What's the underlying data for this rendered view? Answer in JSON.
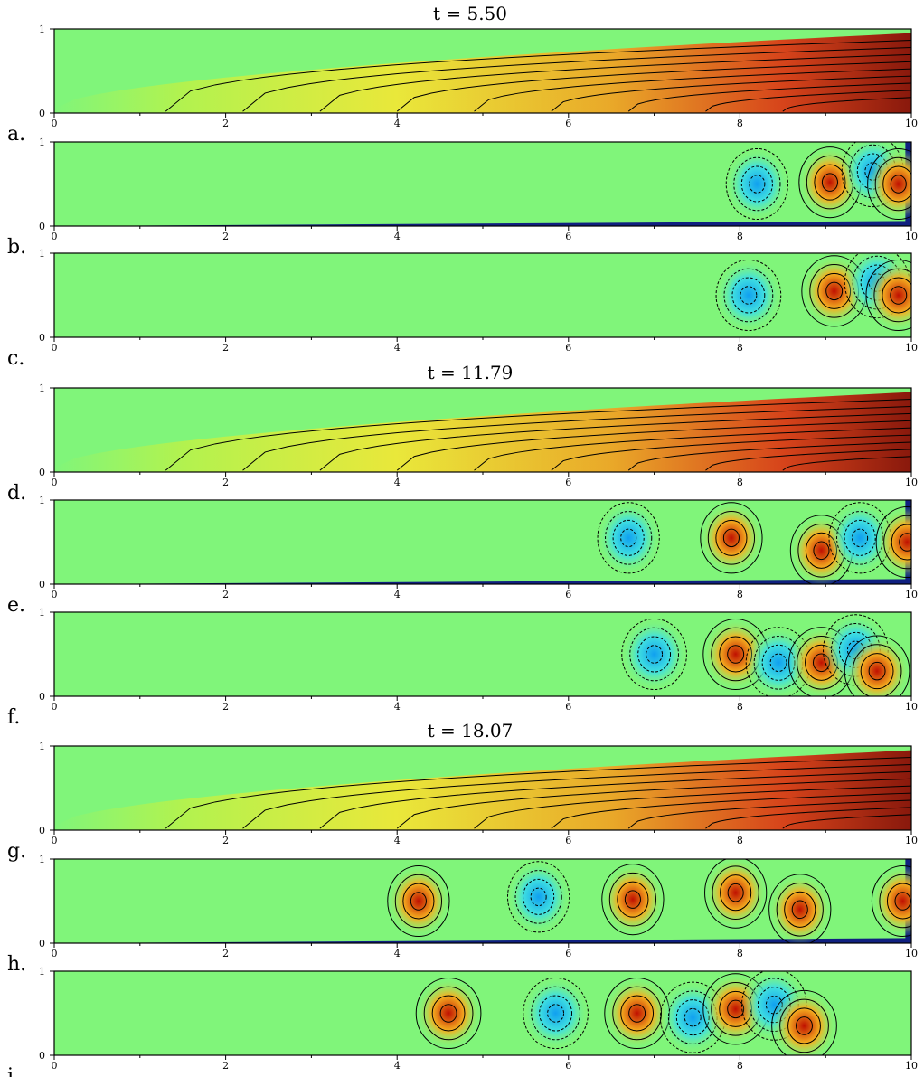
{
  "figure": {
    "time_titles": [
      "t = 5.50",
      "t = 11.79",
      "t = 18.07"
    ]
  },
  "chart_data": [
    {
      "type": "heatmap",
      "panel": "a.",
      "time": "t = 5.50",
      "field": "temperature",
      "x_range": [
        0,
        10
      ],
      "y_range": [
        0,
        1
      ],
      "x_ticks": [
        "0",
        "2",
        "4",
        "6",
        "8",
        "10"
      ],
      "y_ticks": [
        "0",
        "1"
      ]
    },
    {
      "type": "heatmap",
      "panel": "b.",
      "time": "t = 5.50",
      "field": "vorticity",
      "x_range": [
        0,
        10
      ],
      "y_range": [
        0,
        1
      ],
      "x_ticks": [
        "0",
        "2",
        "4",
        "6",
        "8",
        "10"
      ],
      "y_ticks": [
        "0",
        "1"
      ],
      "cells": [
        {
          "x": 8.2,
          "y": 0.5,
          "sign": -1
        },
        {
          "x": 9.05,
          "y": 0.52,
          "sign": 1
        },
        {
          "x": 9.55,
          "y": 0.65,
          "sign": -1
        },
        {
          "x": 9.85,
          "y": 0.5,
          "sign": 1
        }
      ]
    },
    {
      "type": "heatmap",
      "panel": "c.",
      "time": "t = 5.50",
      "field": "streamfunction",
      "x_range": [
        0,
        10
      ],
      "y_range": [
        0,
        1
      ],
      "x_ticks": [
        "0",
        "2",
        "4",
        "6",
        "8",
        "10"
      ],
      "y_ticks": [
        "0",
        "1"
      ],
      "cells": [
        {
          "x": 8.1,
          "y": 0.5,
          "sign": -1
        },
        {
          "x": 9.1,
          "y": 0.55,
          "sign": 1
        },
        {
          "x": 9.6,
          "y": 0.65,
          "sign": -1
        },
        {
          "x": 9.85,
          "y": 0.5,
          "sign": 1
        }
      ]
    },
    {
      "type": "heatmap",
      "panel": "d.",
      "time": "t = 11.79",
      "field": "temperature",
      "x_range": [
        0,
        10
      ],
      "y_range": [
        0,
        1
      ],
      "x_ticks": [
        "0",
        "2",
        "4",
        "6",
        "8",
        "10"
      ],
      "y_ticks": [
        "0",
        "1"
      ]
    },
    {
      "type": "heatmap",
      "panel": "e.",
      "time": "t = 11.79",
      "field": "vorticity",
      "x_range": [
        0,
        10
      ],
      "y_range": [
        0,
        1
      ],
      "x_ticks": [
        "0",
        "2",
        "4",
        "6",
        "8",
        "10"
      ],
      "y_ticks": [
        "0",
        "1"
      ],
      "cells": [
        {
          "x": 6.7,
          "y": 0.55,
          "sign": -1
        },
        {
          "x": 7.9,
          "y": 0.55,
          "sign": 1
        },
        {
          "x": 8.95,
          "y": 0.4,
          "sign": 1
        },
        {
          "x": 9.4,
          "y": 0.55,
          "sign": -1
        },
        {
          "x": 9.95,
          "y": 0.5,
          "sign": 1
        }
      ]
    },
    {
      "type": "heatmap",
      "panel": "f.",
      "time": "t = 11.79",
      "field": "streamfunction",
      "x_range": [
        0,
        10
      ],
      "y_range": [
        0,
        1
      ],
      "x_ticks": [
        "0",
        "2",
        "4",
        "6",
        "8",
        "10"
      ],
      "y_ticks": [
        "0",
        "1"
      ],
      "cells": [
        {
          "x": 7.0,
          "y": 0.5,
          "sign": -1
        },
        {
          "x": 7.95,
          "y": 0.5,
          "sign": 1
        },
        {
          "x": 8.45,
          "y": 0.4,
          "sign": -1
        },
        {
          "x": 8.95,
          "y": 0.4,
          "sign": 1
        },
        {
          "x": 9.35,
          "y": 0.55,
          "sign": -1
        },
        {
          "x": 9.6,
          "y": 0.3,
          "sign": 1
        }
      ]
    },
    {
      "type": "heatmap",
      "panel": "g.",
      "time": "t = 18.07",
      "field": "temperature",
      "x_range": [
        0,
        10
      ],
      "y_range": [
        0,
        1
      ],
      "x_ticks": [
        "0",
        "2",
        "4",
        "6",
        "8",
        "10"
      ],
      "y_ticks": [
        "0",
        "1"
      ]
    },
    {
      "type": "heatmap",
      "panel": "h.",
      "time": "t = 18.07",
      "field": "vorticity",
      "x_range": [
        0,
        10
      ],
      "y_range": [
        0,
        1
      ],
      "x_ticks": [
        "0",
        "2",
        "4",
        "6",
        "8",
        "10"
      ],
      "y_ticks": [
        "0",
        "1"
      ],
      "cells": [
        {
          "x": 4.25,
          "y": 0.5,
          "sign": 1
        },
        {
          "x": 5.65,
          "y": 0.55,
          "sign": -1
        },
        {
          "x": 6.75,
          "y": 0.52,
          "sign": 1
        },
        {
          "x": 7.95,
          "y": 0.6,
          "sign": 1
        },
        {
          "x": 8.7,
          "y": 0.4,
          "sign": 1
        },
        {
          "x": 9.9,
          "y": 0.5,
          "sign": 1
        }
      ]
    },
    {
      "type": "heatmap",
      "panel": "i.",
      "time": "t = 18.07",
      "field": "streamfunction",
      "x_range": [
        0,
        10
      ],
      "y_range": [
        0,
        1
      ],
      "x_ticks": [
        "0",
        "2",
        "4",
        "6",
        "8",
        "10"
      ],
      "y_ticks": [
        "0",
        "1"
      ],
      "cells": [
        {
          "x": 4.6,
          "y": 0.5,
          "sign": 1
        },
        {
          "x": 5.85,
          "y": 0.5,
          "sign": -1
        },
        {
          "x": 6.8,
          "y": 0.5,
          "sign": 1
        },
        {
          "x": 7.45,
          "y": 0.45,
          "sign": -1
        },
        {
          "x": 7.95,
          "y": 0.55,
          "sign": 1
        },
        {
          "x": 8.4,
          "y": 0.6,
          "sign": -1
        },
        {
          "x": 8.75,
          "y": 0.35,
          "sign": 1
        }
      ]
    }
  ]
}
